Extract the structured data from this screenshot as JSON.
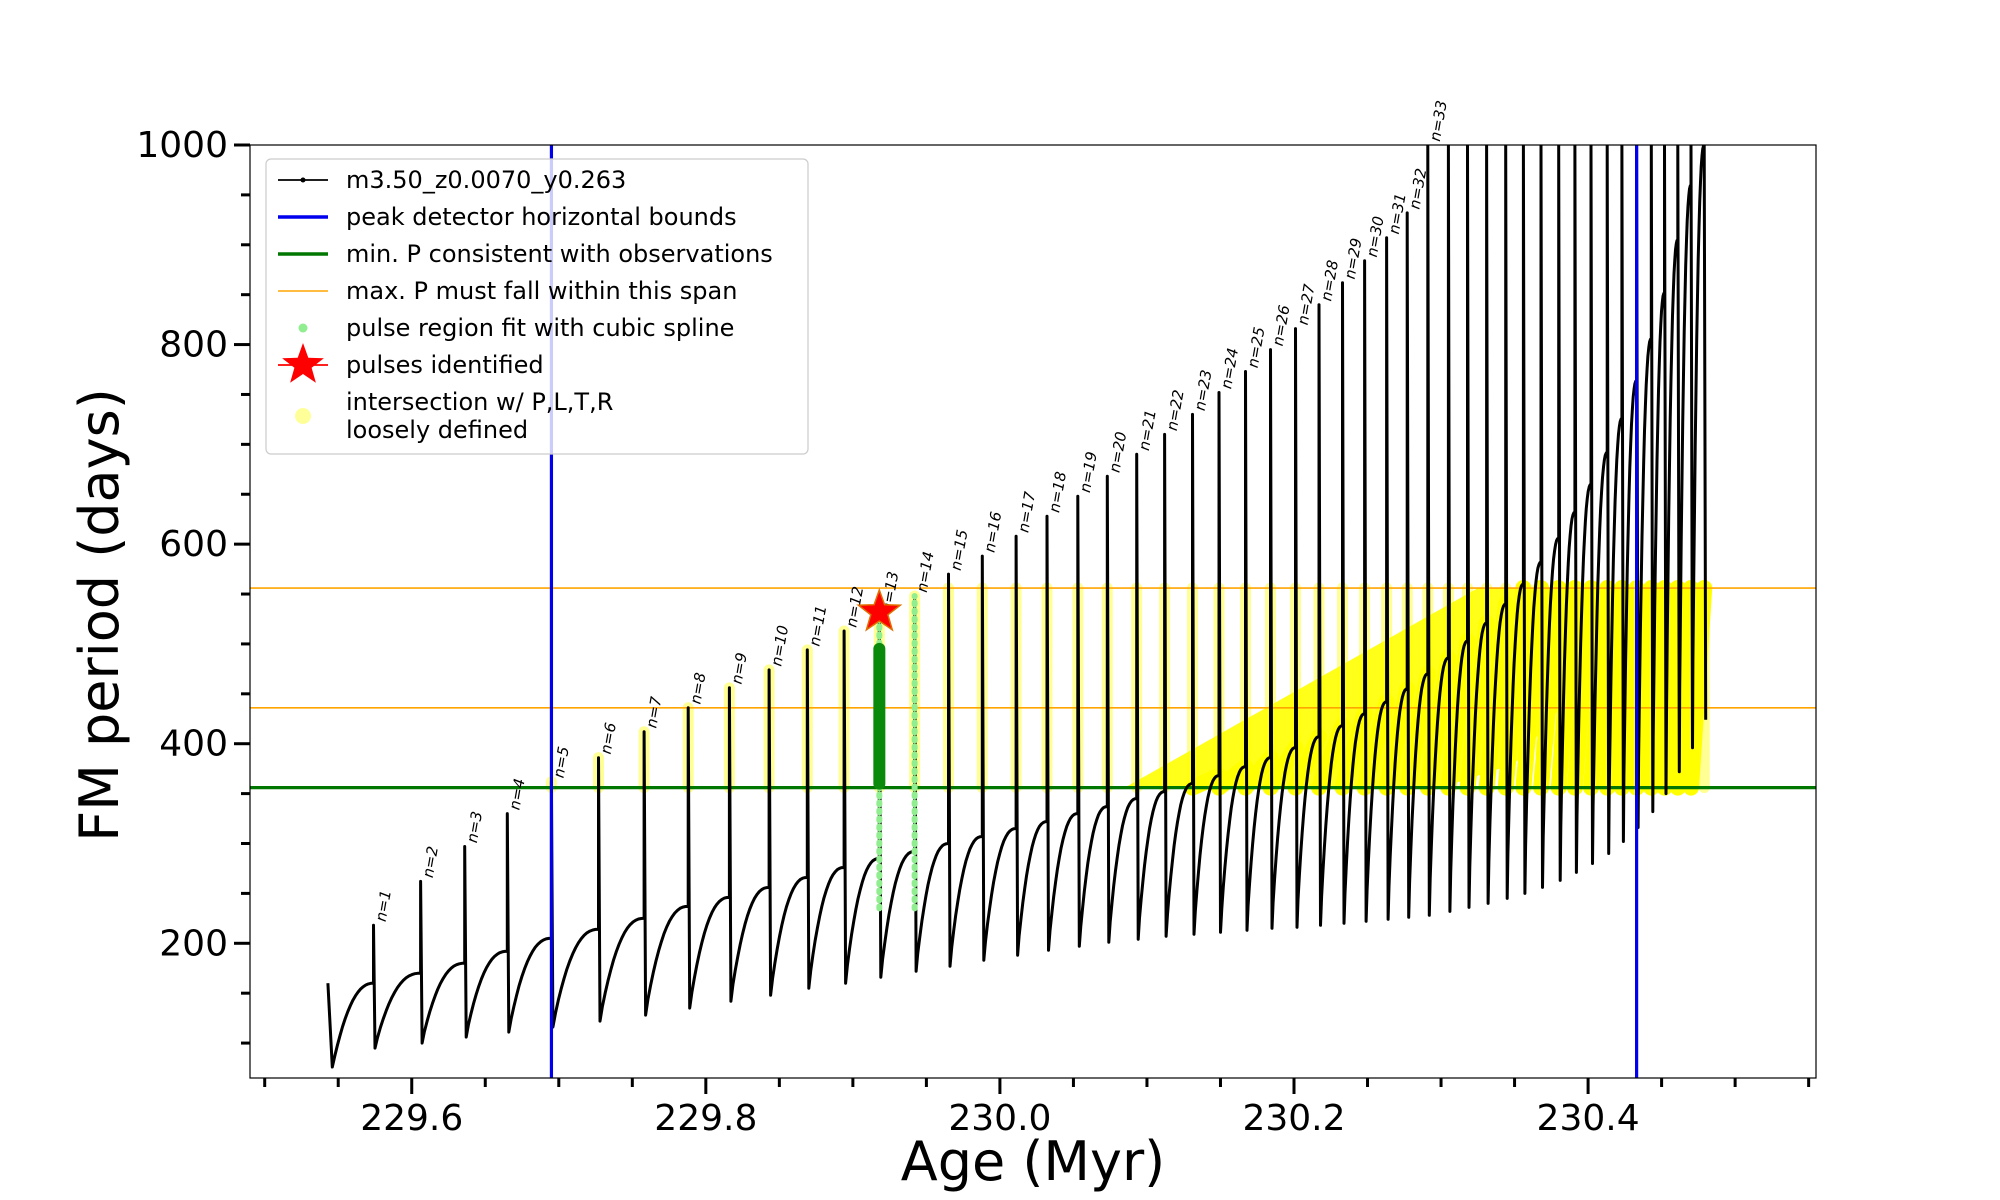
{
  "chart_data": {
    "type": "line",
    "title": "",
    "xlabel": "Age (Myr)",
    "ylabel": "FM period (days)",
    "xlim": [
      229.49,
      230.555
    ],
    "ylim": [
      65,
      1000
    ],
    "xticks": [
      229.6,
      229.8,
      230.0,
      230.2,
      230.4
    ],
    "xtick_labels": [
      "229.6",
      "229.8",
      "230.0",
      "230.2",
      "230.4"
    ],
    "yticks": [
      200,
      400,
      600,
      800,
      1000
    ],
    "ytick_labels": [
      "200",
      "400",
      "600",
      "800",
      "1000"
    ],
    "grid": false,
    "legend_position": "top-left",
    "colors": {
      "track": "#000000",
      "bounds": "#0000ee",
      "min_period": "#007700",
      "max_period_span": "#ffa500",
      "spline": "#90ee90",
      "pulse_fit": "#0a8a0a",
      "star": "#ff0000",
      "intersection": "#ffff00"
    },
    "legend": [
      {
        "label": "m3.50_z0.0070_y0.263",
        "marker": "line-dot",
        "color": "#000000"
      },
      {
        "label": "peak detector horizontal bounds",
        "marker": "line",
        "color": "#0000ee"
      },
      {
        "label": "min. P consistent with observations",
        "marker": "line",
        "color": "#007700"
      },
      {
        "label": "max. P must fall within this span",
        "marker": "thin-line",
        "color": "#ffa500"
      },
      {
        "label": "pulse region fit with cubic spline",
        "marker": "dot",
        "color": "#90ee90"
      },
      {
        "label": "pulses identified",
        "marker": "star",
        "color": "#ff0000"
      },
      {
        "label": "intersection w/ P,L,T,R",
        "label2": "loosely defined",
        "marker": "circle",
        "color": "#ffff99"
      }
    ],
    "vertical_lines": [
      229.695,
      230.433
    ],
    "min_period": 356,
    "max_period_span": [
      436,
      556
    ],
    "star_point": {
      "x": 229.918,
      "y": 532
    },
    "pulses": [
      {
        "label": "n=1",
        "x": 229.574,
        "base": 95,
        "peak": 218,
        "pre": 160
      },
      {
        "label": "n=2",
        "x": 229.606,
        "base": 100,
        "peak": 262,
        "pre": 170
      },
      {
        "label": "n=3",
        "x": 229.636,
        "base": 106,
        "peak": 297,
        "pre": 180
      },
      {
        "label": "n=4",
        "x": 229.665,
        "base": 111,
        "peak": 330,
        "pre": 192
      },
      {
        "label": "n=5",
        "x": 229.695,
        "base": 116,
        "peak": 362,
        "pre": 205
      },
      {
        "label": "n=6",
        "x": 229.727,
        "base": 122,
        "peak": 386,
        "pre": 214
      },
      {
        "label": "n=7",
        "x": 229.758,
        "base": 128,
        "peak": 412,
        "pre": 225
      },
      {
        "label": "n=8",
        "x": 229.788,
        "base": 135,
        "peak": 436,
        "pre": 237
      },
      {
        "label": "n=9",
        "x": 229.816,
        "base": 142,
        "peak": 456,
        "pre": 246
      },
      {
        "label": "n=10",
        "x": 229.843,
        "base": 148,
        "peak": 474,
        "pre": 256
      },
      {
        "label": "n=11",
        "x": 229.869,
        "base": 155,
        "peak": 494,
        "pre": 266
      },
      {
        "label": "n=12",
        "x": 229.894,
        "base": 160,
        "peak": 513,
        "pre": 276
      },
      {
        "label": "n=13",
        "x": 229.918,
        "base": 166,
        "peak": 528,
        "pre": 285
      },
      {
        "label": "n=14",
        "x": 229.942,
        "base": 172,
        "peak": 548,
        "pre": 292
      },
      {
        "label": "n=15",
        "x": 229.965,
        "base": 177,
        "peak": 570,
        "pre": 300
      },
      {
        "label": "n=16",
        "x": 229.988,
        "base": 183,
        "peak": 588,
        "pre": 307
      },
      {
        "label": "n=17",
        "x": 230.011,
        "base": 188,
        "peak": 608,
        "pre": 315
      },
      {
        "label": "n=18",
        "x": 230.032,
        "base": 193,
        "peak": 628,
        "pre": 322
      },
      {
        "label": "n=19",
        "x": 230.053,
        "base": 197,
        "peak": 648,
        "pre": 330
      },
      {
        "label": "n=20",
        "x": 230.073,
        "base": 201,
        "peak": 668,
        "pre": 337
      },
      {
        "label": "n=21",
        "x": 230.093,
        "base": 204,
        "peak": 690,
        "pre": 345
      },
      {
        "label": "n=22",
        "x": 230.112,
        "base": 207,
        "peak": 710,
        "pre": 352
      },
      {
        "label": "n=23",
        "x": 230.131,
        "base": 209,
        "peak": 730,
        "pre": 360
      },
      {
        "label": "n=24",
        "x": 230.149,
        "base": 211,
        "peak": 752,
        "pre": 368
      },
      {
        "label": "n=25",
        "x": 230.167,
        "base": 213,
        "peak": 773,
        "pre": 377
      },
      {
        "label": "n=26",
        "x": 230.184,
        "base": 215,
        "peak": 795,
        "pre": 386
      },
      {
        "label": "n=27",
        "x": 230.201,
        "base": 216,
        "peak": 816,
        "pre": 396
      },
      {
        "label": "n=28",
        "x": 230.217,
        "base": 218,
        "peak": 840,
        "pre": 407
      },
      {
        "label": "n=29",
        "x": 230.233,
        "base": 220,
        "peak": 862,
        "pre": 418
      },
      {
        "label": "n=30",
        "x": 230.248,
        "base": 222,
        "peak": 884,
        "pre": 430
      },
      {
        "label": "n=31",
        "x": 230.263,
        "base": 224,
        "peak": 907,
        "pre": 442
      },
      {
        "label": "n=32",
        "x": 230.277,
        "base": 226,
        "peak": 932,
        "pre": 455
      },
      {
        "label": "n=33",
        "x": 230.291,
        "base": 228,
        "peak": 1000,
        "pre": 470
      },
      {
        "label": "",
        "x": 230.305,
        "base": 232,
        "peak": 1000,
        "pre": 486
      },
      {
        "label": "",
        "x": 230.318,
        "base": 236,
        "peak": 1000,
        "pre": 503
      },
      {
        "label": "",
        "x": 230.331,
        "base": 240,
        "peak": 1000,
        "pre": 521
      },
      {
        "label": "",
        "x": 230.344,
        "base": 245,
        "peak": 1000,
        "pre": 540
      },
      {
        "label": "",
        "x": 230.356,
        "base": 250,
        "peak": 1000,
        "pre": 560
      },
      {
        "label": "",
        "x": 230.368,
        "base": 256,
        "peak": 1000,
        "pre": 582
      },
      {
        "label": "",
        "x": 230.38,
        "base": 263,
        "peak": 1000,
        "pre": 606
      },
      {
        "label": "",
        "x": 230.391,
        "base": 271,
        "peak": 1000,
        "pre": 632
      },
      {
        "label": "",
        "x": 230.402,
        "base": 280,
        "peak": 1000,
        "pre": 660
      },
      {
        "label": "",
        "x": 230.413,
        "base": 290,
        "peak": 1000,
        "pre": 692
      },
      {
        "label": "",
        "x": 230.423,
        "base": 302,
        "peak": 1000,
        "pre": 726
      },
      {
        "label": "",
        "x": 230.433,
        "base": 316,
        "peak": 1000,
        "pre": 764
      },
      {
        "label": "",
        "x": 230.443,
        "base": 332,
        "peak": 1000,
        "pre": 806
      },
      {
        "label": "",
        "x": 230.452,
        "base": 350,
        "peak": 1000,
        "pre": 852
      },
      {
        "label": "",
        "x": 230.461,
        "base": 372,
        "peak": 1000,
        "pre": 905
      },
      {
        "label": "",
        "x": 230.47,
        "base": 396,
        "peak": 1000,
        "pre": 960
      },
      {
        "label": "",
        "x": 230.479,
        "base": 424,
        "peak": 1000,
        "pre": 1000
      }
    ],
    "track_start": {
      "x": 229.543,
      "y": 160
    },
    "track_min": {
      "x": 229.546,
      "y": 76
    }
  }
}
